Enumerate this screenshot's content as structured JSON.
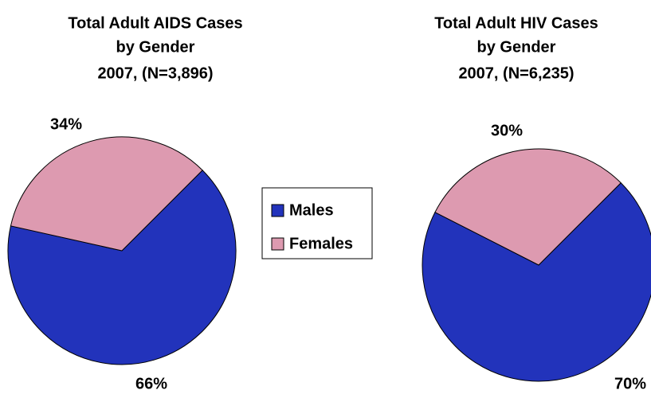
{
  "chart_data": [
    {
      "type": "pie",
      "title": [
        "Total Adult AIDS Cases",
        "by Gender",
        "2007, (N=3,896)"
      ],
      "categories": [
        "Males",
        "Females"
      ],
      "values": [
        66,
        34
      ],
      "value_labels": [
        "66%",
        "34%"
      ],
      "colors": [
        "#2233bb",
        "#dd9ab0"
      ],
      "legend": "center"
    },
    {
      "type": "pie",
      "title": [
        "Total Adult HIV Cases",
        "by Gender",
        "2007, (N=6,235)"
      ],
      "categories": [
        "Males",
        "Females"
      ],
      "values": [
        70,
        30
      ],
      "value_labels": [
        "70%",
        "30%"
      ],
      "colors": [
        "#2233bb",
        "#dd9ab0"
      ]
    }
  ]
}
